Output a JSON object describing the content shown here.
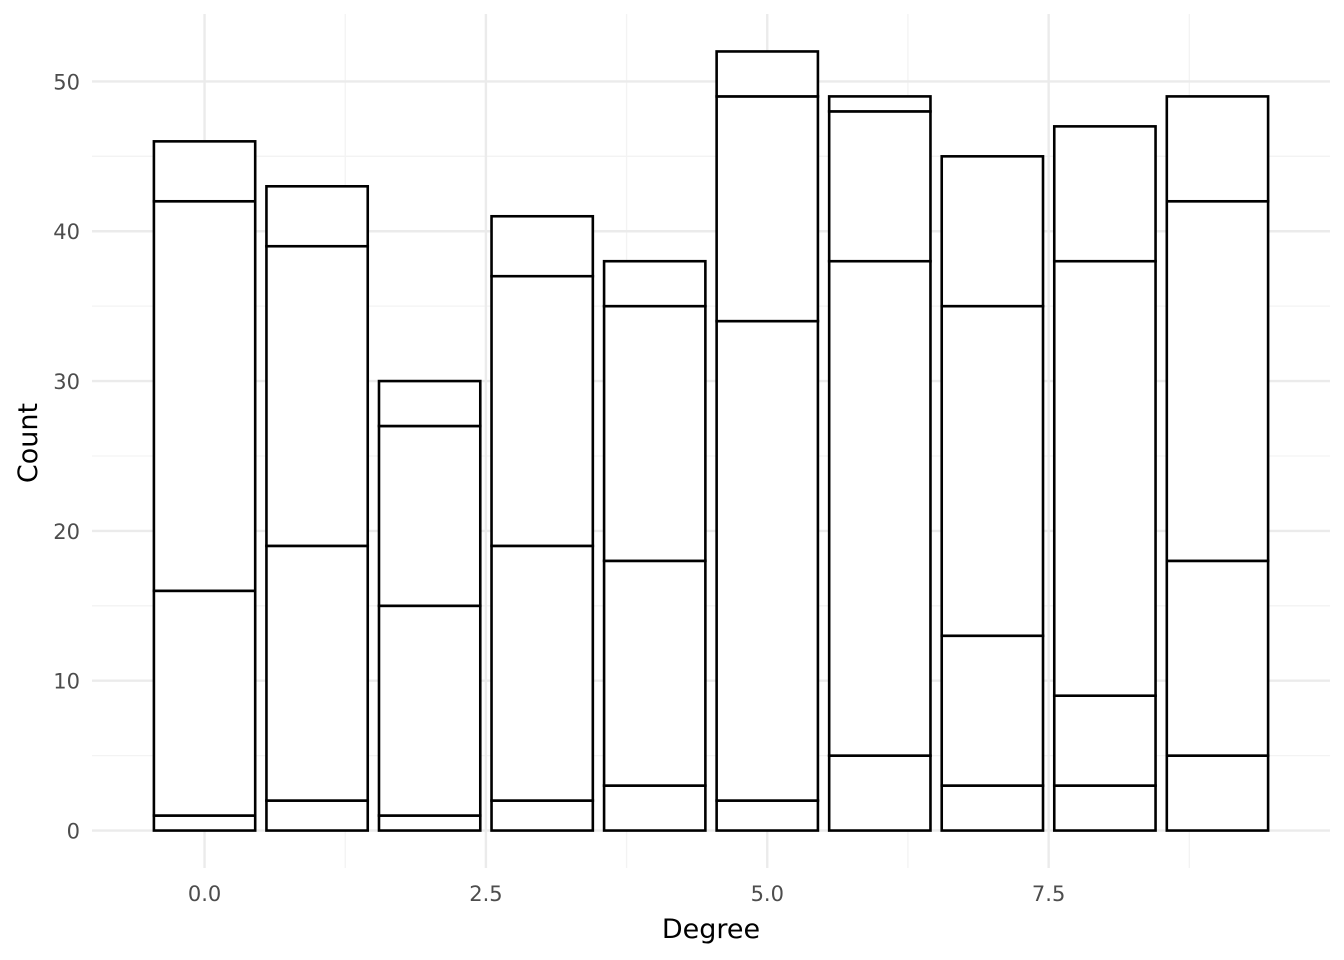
{
  "chart_data": {
    "type": "bar",
    "stacked": true,
    "title": "",
    "xlabel": "Degree",
    "ylabel": "Count",
    "xlim": [
      -1,
      10
    ],
    "ylim": [
      -2.5,
      54.5
    ],
    "x_ticks": [
      0.0,
      2.5,
      5.0,
      7.5
    ],
    "x_tick_labels": [
      "0.0",
      "2.5",
      "5.0",
      "7.5"
    ],
    "y_ticks": [
      0,
      10,
      20,
      30,
      40,
      50
    ],
    "y_tick_labels": [
      "0",
      "10",
      "20",
      "30",
      "40",
      "50"
    ],
    "grid": true,
    "bar_width": 0.9,
    "fill_color": "#ffffff",
    "outline_color": "#000000",
    "x": [
      0,
      1,
      2,
      3,
      4,
      5,
      6,
      7,
      8,
      9
    ],
    "stack_boundaries": [
      [
        1,
        16,
        42,
        46
      ],
      [
        2,
        19,
        39,
        43
      ],
      [
        1,
        15,
        27,
        30
      ],
      [
        2,
        19,
        37,
        41
      ],
      [
        3,
        18,
        35,
        38
      ],
      [
        2,
        34,
        49,
        52
      ],
      [
        5,
        38,
        48,
        49
      ],
      [
        3,
        13,
        35,
        45
      ],
      [
        3,
        9,
        38,
        47
      ],
      [
        5,
        18,
        42,
        49
      ]
    ]
  }
}
